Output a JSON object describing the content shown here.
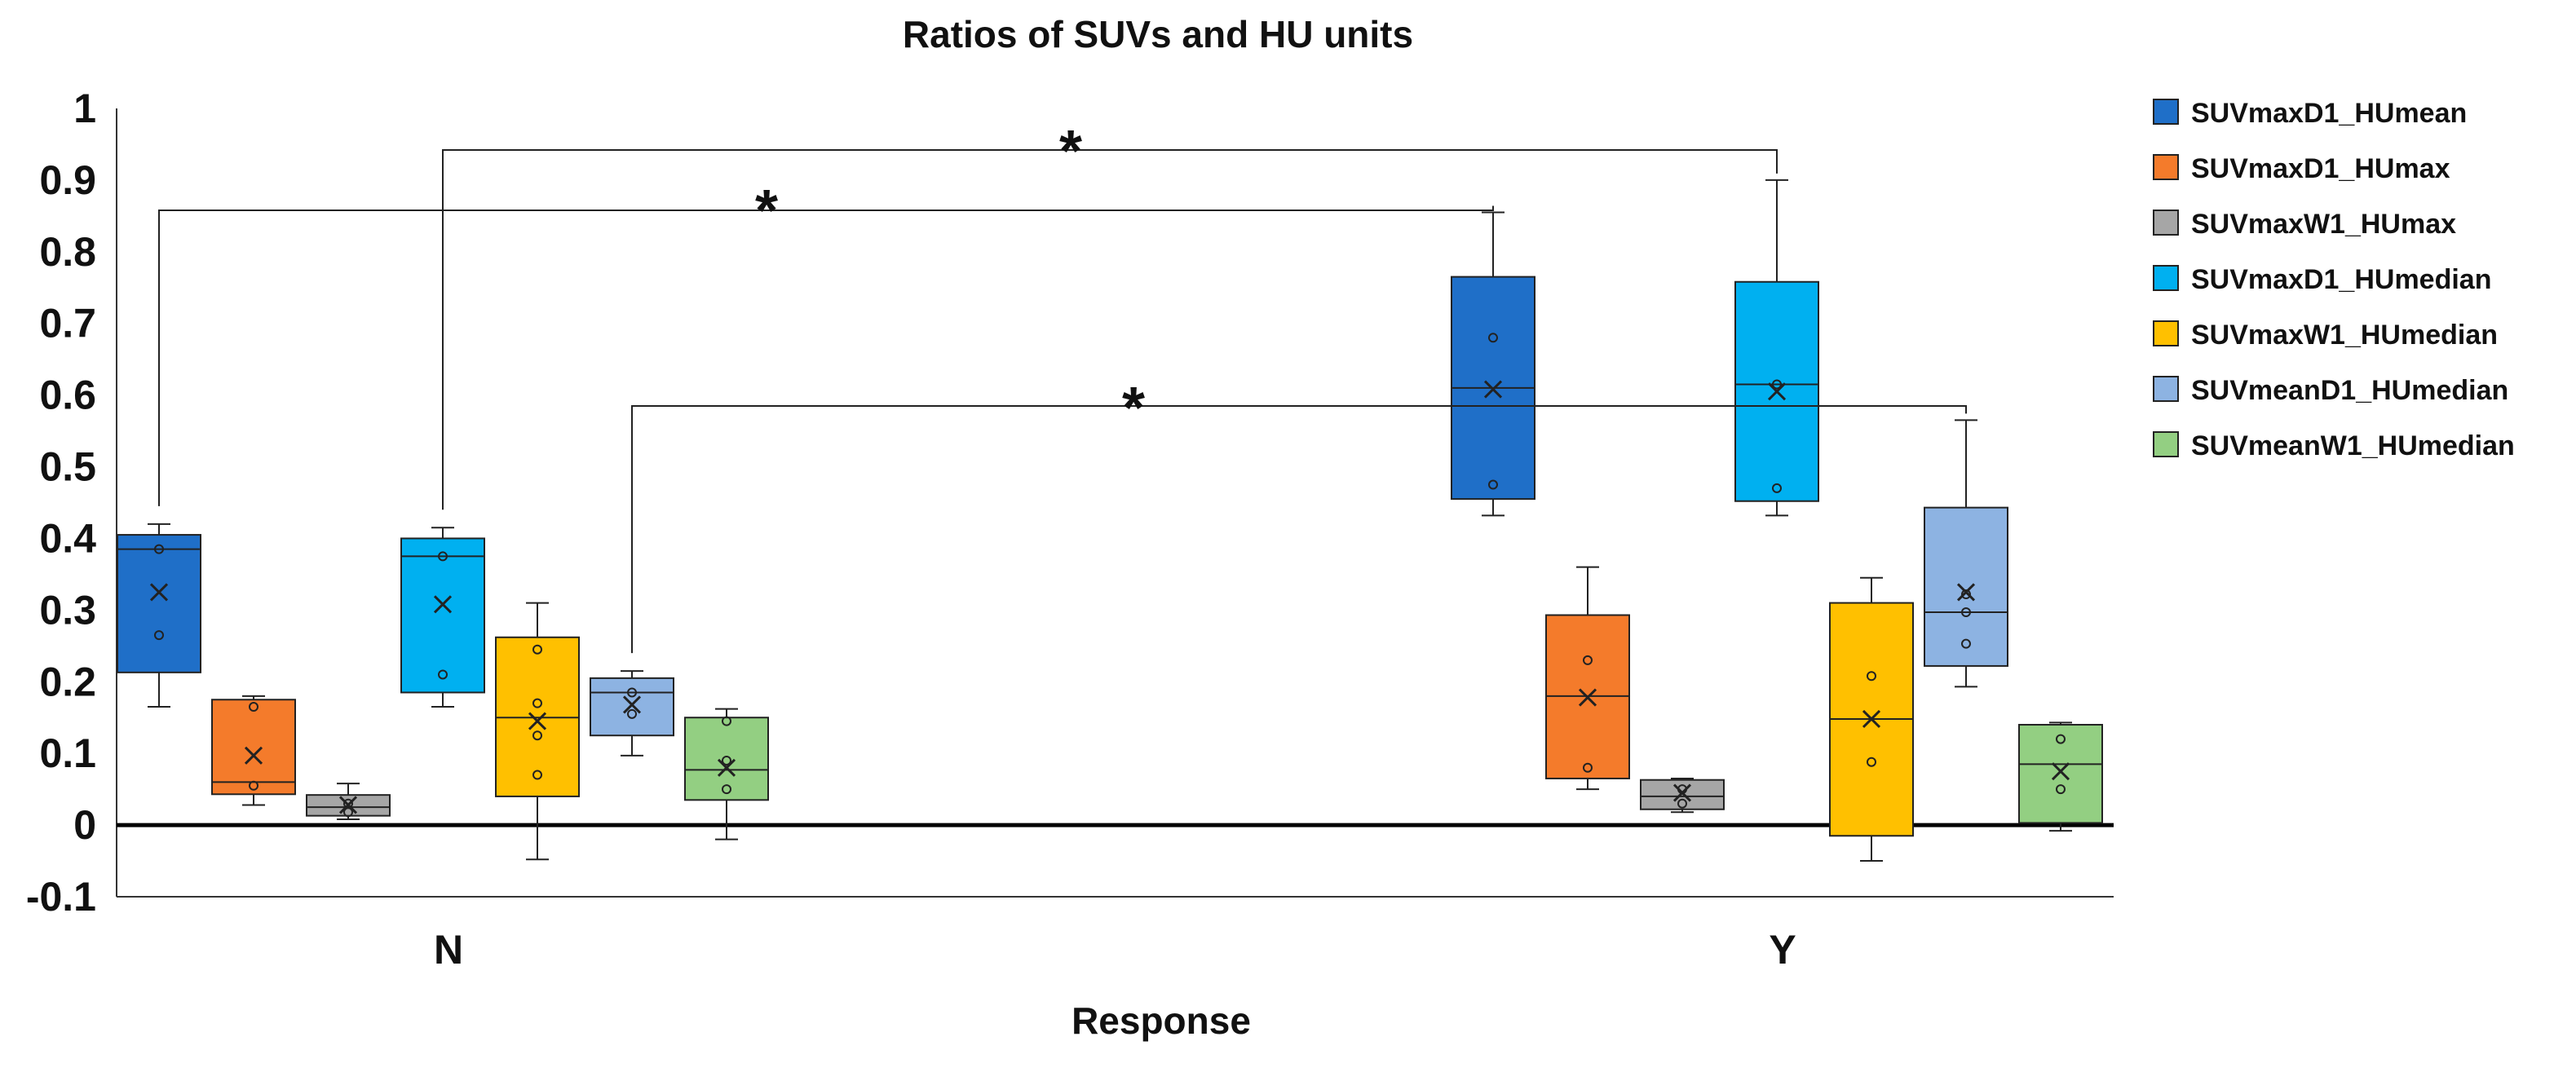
{
  "chart_data": {
    "type": "box",
    "title": "Ratios of SUVs and HU units",
    "xlabel": "Response",
    "ylabel": "",
    "ylim": [
      -0.1,
      1
    ],
    "yticks": [
      -0.1,
      0,
      0.1,
      0.2,
      0.3,
      0.4,
      0.5,
      0.6,
      0.7,
      0.8,
      0.9,
      1
    ],
    "ytick_labels": [
      "-0.1",
      "0",
      "0.1",
      "0.2",
      "0.3",
      "0.4",
      "0.5",
      "0.6",
      "0.7",
      "0.8",
      "0.9",
      "1"
    ],
    "categories": [
      "N",
      "Y"
    ],
    "legend_position": "right",
    "series": [
      {
        "name": "SUVmaxD1_HUmean",
        "color": "#1f6fc8",
        "stats": [
          {
            "min": 0.165,
            "q1": 0.213,
            "median": 0.385,
            "q3": 0.405,
            "max": 0.42,
            "mean": 0.325,
            "points": [
              0.385,
              0.265
            ]
          },
          {
            "min": 0.432,
            "q1": 0.455,
            "median": 0.61,
            "q3": 0.765,
            "max": 0.855,
            "mean": 0.608,
            "points": [
              0.68,
              0.475
            ]
          }
        ]
      },
      {
        "name": "SUVmaxD1_HUmax",
        "color": "#f47b2b",
        "stats": [
          {
            "min": 0.028,
            "q1": 0.043,
            "median": 0.06,
            "q3": 0.175,
            "max": 0.18,
            "mean": 0.097,
            "points": [
              0.165,
              0.055
            ]
          },
          {
            "min": 0.05,
            "q1": 0.065,
            "median": 0.18,
            "q3": 0.293,
            "max": 0.36,
            "mean": 0.178,
            "points": [
              0.23,
              0.08
            ]
          }
        ]
      },
      {
        "name": "SUVmaxW1_HUmax",
        "color": "#a6a6a6",
        "stats": [
          {
            "min": 0.008,
            "q1": 0.013,
            "median": 0.025,
            "q3": 0.042,
            "max": 0.058,
            "mean": 0.028,
            "points": [
              0.03,
              0.018
            ]
          },
          {
            "min": 0.018,
            "q1": 0.022,
            "median": 0.04,
            "q3": 0.063,
            "max": 0.065,
            "mean": 0.045,
            "points": [
              0.05,
              0.03
            ]
          }
        ]
      },
      {
        "name": "SUVmaxD1_HUmedian",
        "color": "#00b0f0",
        "stats": [
          {
            "min": 0.165,
            "q1": 0.185,
            "median": 0.375,
            "q3": 0.4,
            "max": 0.415,
            "mean": 0.308,
            "points": [
              0.375,
              0.21
            ]
          },
          {
            "min": 0.432,
            "q1": 0.452,
            "median": 0.615,
            "q3": 0.758,
            "max": 0.9,
            "mean": 0.605,
            "points": [
              0.615,
              0.47
            ]
          }
        ]
      },
      {
        "name": "SUVmaxW1_HUmedian",
        "color": "#ffc000",
        "stats": [
          {
            "min": -0.048,
            "q1": 0.04,
            "median": 0.15,
            "q3": 0.262,
            "max": 0.31,
            "mean": 0.145,
            "points": [
              0.245,
              0.17,
              0.125,
              0.07
            ]
          },
          {
            "min": -0.05,
            "q1": -0.015,
            "median": 0.148,
            "q3": 0.31,
            "max": 0.345,
            "mean": 0.148,
            "points": [
              0.208,
              0.088
            ]
          }
        ]
      },
      {
        "name": "SUVmeanD1_HUmedian",
        "color": "#8db3e2",
        "stats": [
          {
            "min": 0.097,
            "q1": 0.125,
            "median": 0.185,
            "q3": 0.205,
            "max": 0.215,
            "mean": 0.168,
            "points": [
              0.185,
              0.155
            ]
          },
          {
            "min": 0.193,
            "q1": 0.222,
            "median": 0.297,
            "q3": 0.443,
            "max": 0.565,
            "mean": 0.325,
            "points": [
              0.322,
              0.297,
              0.253
            ]
          }
        ]
      },
      {
        "name": "SUVmeanW1_HUmedian",
        "color": "#93cf82",
        "stats": [
          {
            "min": -0.02,
            "q1": 0.035,
            "median": 0.077,
            "q3": 0.15,
            "max": 0.162,
            "mean": 0.08,
            "points": [
              0.145,
              0.09,
              0.05
            ]
          },
          {
            "min": -0.008,
            "q1": 0.003,
            "median": 0.085,
            "q3": 0.14,
            "max": 0.143,
            "mean": 0.075,
            "points": [
              0.12,
              0.05
            ]
          }
        ]
      }
    ],
    "significance": [
      {
        "from_category": 0,
        "from_series": 0,
        "to_category": 1,
        "to_series": 0,
        "label": "*"
      },
      {
        "from_category": 0,
        "from_series": 3,
        "to_category": 1,
        "to_series": 3,
        "label": "*"
      },
      {
        "from_category": 0,
        "from_series": 5,
        "to_category": 1,
        "to_series": 5,
        "label": "*"
      }
    ]
  }
}
